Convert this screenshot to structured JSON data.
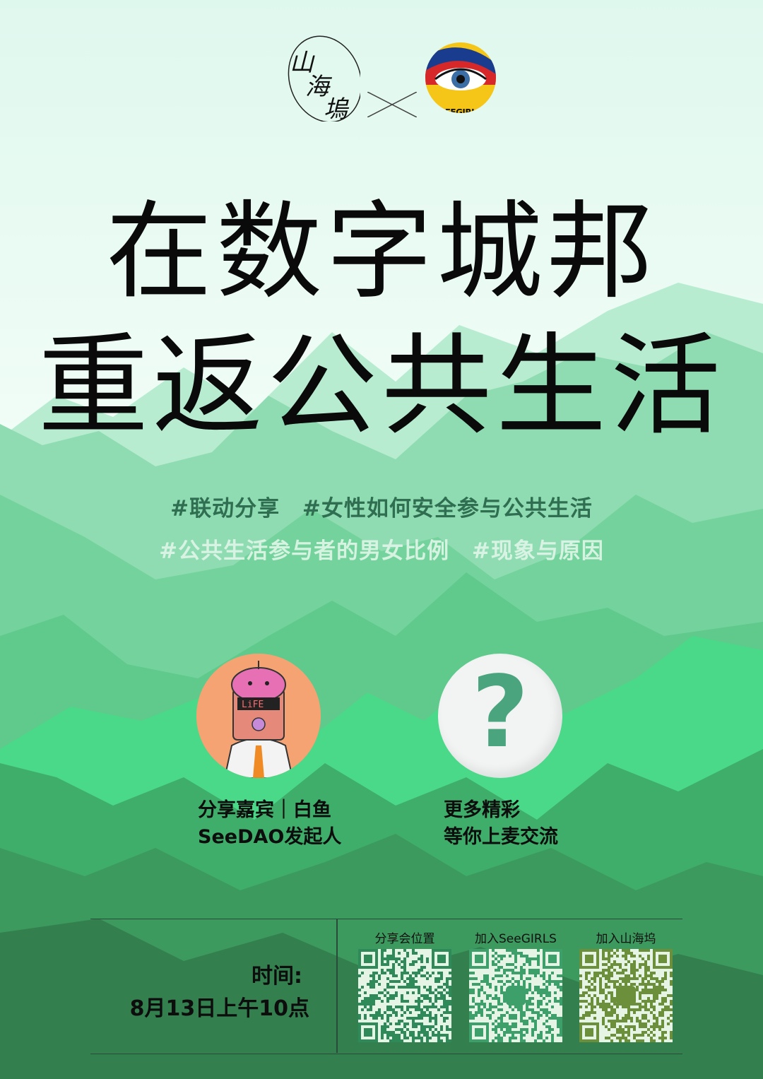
{
  "header": {
    "logo_left": "山海塢",
    "logo_right": "SEEGIRLS"
  },
  "title": {
    "line1": "在数字城邦",
    "line2": "重返公共生活"
  },
  "tags": {
    "row1": [
      "#联动分享",
      "#女性如何安全参与公共生活"
    ],
    "row2": [
      "#公共生活参与者的男女比例",
      "#现象与原因"
    ]
  },
  "guests": {
    "guest1": {
      "line1": "分享嘉宾｜白鱼",
      "line2": "SeeDAO发起人",
      "avatar_text": "LiFE"
    },
    "guest2": {
      "line1": "更多精彩",
      "line2": "等你上麦交流",
      "icon": "?"
    }
  },
  "info": {
    "time_label": "时间:",
    "time_value": "8月13日上午10点",
    "qr_codes": [
      {
        "label": "分享会位置"
      },
      {
        "label": "加入SeeGIRLS"
      },
      {
        "label": "加入山海坞"
      }
    ]
  },
  "colors": {
    "mountain_light": "#a9e6c2",
    "mountain_mid": "#6ccf93",
    "mountain_bright": "#4ad889",
    "mountain_dark": "#3c9a5e",
    "mountain_deepest": "#2f7d4a",
    "accent_green": "#2f6e50"
  }
}
